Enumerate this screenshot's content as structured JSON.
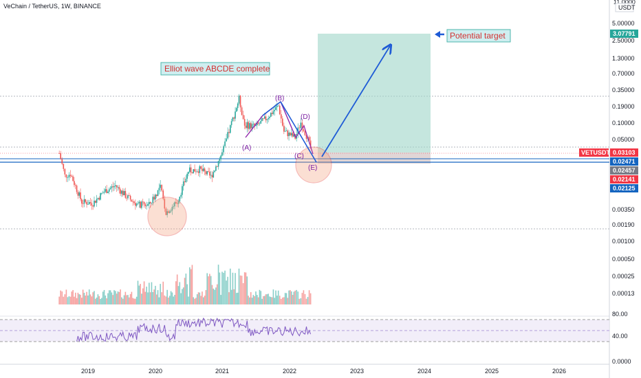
{
  "header": {
    "symbol_line": "VeChain / TetherUS, 1W, BINANCE"
  },
  "price_axis": {
    "unit_label": "USDT",
    "top_partial_label": "11.0000",
    "ticks": [
      "5.00000",
      "2.50000",
      "1.30000",
      "0.70000",
      "0.35000",
      "0.19000",
      "0.10000",
      "0.05000",
      "0.02471",
      "0.02457",
      "0.00350",
      "0.00190",
      "0.00100",
      "0.00050",
      "0.00025",
      "0.00013"
    ]
  },
  "rsi_axis": {
    "ticks": [
      "80.00",
      "40.00",
      "0.0000"
    ]
  },
  "time_axis": {
    "labels": [
      "2019",
      "2020",
      "2021",
      "2022",
      "2023",
      "2024",
      "2025",
      "2026"
    ]
  },
  "badges": {
    "target": {
      "text": "3.07791",
      "color": "#26a69a"
    },
    "symbol": {
      "text": "VETUSDT",
      "color": "#f23645"
    },
    "price": {
      "text": "0.03103",
      "color": "#f23645"
    },
    "level1": {
      "text": "0.02471",
      "color": "#1565c0"
    },
    "level2": {
      "text": "0.02457",
      "color": "#787b86"
    },
    "level3": {
      "text": "0.02141",
      "color": "#f23645"
    },
    "level4": {
      "text": "0.02125",
      "color": "#1565c0"
    }
  },
  "annotations": {
    "elliott": "Elliot wave ABCDE complete",
    "target": "Potential target",
    "wave_a": "(A)",
    "wave_b": "(B)",
    "wave_c": "(C)",
    "wave_d": "(D)",
    "wave_e": "(E)"
  },
  "colors": {
    "up": "#26a69a",
    "down": "#ef5350",
    "blue": "#1565c0",
    "purple": "#8e24aa",
    "target_box": "#9fd6c8",
    "rsi": "#7e57c2"
  },
  "chart_data": {
    "type": "candlestick",
    "symbol": "VETUSDT",
    "timeframe": "1W",
    "exchange": "BINANCE",
    "scale": "log",
    "x_range": [
      "2018-08",
      "2026-12"
    ],
    "y_range": [
      0.00013,
      11.0
    ],
    "last_price": 0.03103,
    "target_price": 3.07791,
    "horizontal_levels": [
      0.02471,
      0.02457,
      0.02141,
      0.02125
    ],
    "approx_close_path": [
      {
        "date": "2018-08",
        "value": 0.03
      },
      {
        "date": "2018-09",
        "value": 0.0125
      },
      {
        "date": "2018-10",
        "value": 0.0135
      },
      {
        "date": "2018-12",
        "value": 0.0045
      },
      {
        "date": "2019-02",
        "value": 0.0043
      },
      {
        "date": "2019-04",
        "value": 0.0068
      },
      {
        "date": "2019-06",
        "value": 0.0085
      },
      {
        "date": "2019-08",
        "value": 0.0055
      },
      {
        "date": "2019-10",
        "value": 0.004
      },
      {
        "date": "2019-12",
        "value": 0.004
      },
      {
        "date": "2020-02",
        "value": 0.008
      },
      {
        "date": "2020-03",
        "value": 0.003
      },
      {
        "date": "2020-05",
        "value": 0.0045
      },
      {
        "date": "2020-07",
        "value": 0.015
      },
      {
        "date": "2020-09",
        "value": 0.016
      },
      {
        "date": "2020-11",
        "value": 0.012
      },
      {
        "date": "2021-01",
        "value": 0.03
      },
      {
        "date": "2021-02",
        "value": 0.06
      },
      {
        "date": "2021-04",
        "value": 0.25
      },
      {
        "date": "2021-05",
        "value": 0.09
      },
      {
        "date": "2021-07",
        "value": 0.085
      },
      {
        "date": "2021-09",
        "value": 0.12
      },
      {
        "date": "2021-11",
        "value": 0.19
      },
      {
        "date": "2021-12",
        "value": 0.07
      },
      {
        "date": "2022-02",
        "value": 0.055
      },
      {
        "date": "2022-03",
        "value": 0.1
      },
      {
        "date": "2022-04",
        "value": 0.06
      },
      {
        "date": "2022-05",
        "value": 0.031
      }
    ],
    "rsi": {
      "levels": [
        80,
        40
      ],
      "ylim": [
        0,
        100
      ]
    },
    "volume": "shown"
  }
}
